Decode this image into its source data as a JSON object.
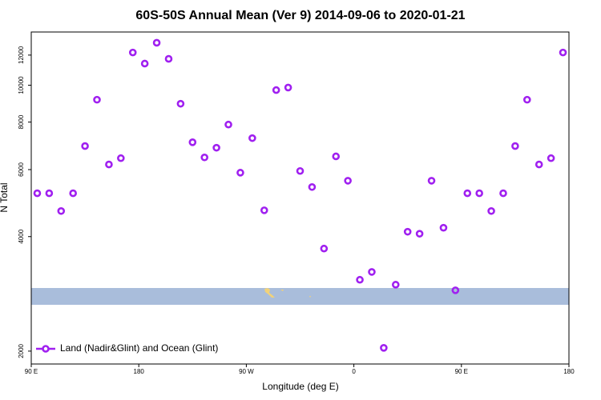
{
  "chart_data": {
    "type": "scatter",
    "title": "60S-50S Annual Mean (Ver 9)   2014-09-06 to 2020-01-21",
    "x_label": "Longitude (deg E)",
    "y_label": "N Total",
    "log_y": true,
    "xlim": [
      90,
      540
    ],
    "xticks": [
      {
        "value": 90,
        "label": "90 E"
      },
      {
        "value": 180,
        "label": "180"
      },
      {
        "value": 270,
        "label": "90 W"
      },
      {
        "value": 360,
        "label": "0"
      },
      {
        "value": 450,
        "label": "90 E"
      },
      {
        "value": 540,
        "label": "180"
      }
    ],
    "ylim": [
      1850,
      13800
    ],
    "yticks": [
      2000,
      4000,
      6000,
      8000,
      10000,
      12000
    ],
    "legend_position": "lower left",
    "series": [
      {
        "name": "Land (Nadir&Glint) and Ocean (Glint)",
        "color": "#a020f0",
        "x": [
          95,
          105,
          115,
          125,
          135,
          145,
          155,
          165,
          175,
          185,
          195,
          205,
          215,
          225,
          235,
          245,
          255,
          265,
          275,
          285,
          295,
          305,
          315,
          325,
          335,
          345,
          355,
          365,
          375,
          385,
          395,
          405,
          415,
          425,
          435,
          445,
          455,
          465,
          475,
          485,
          495,
          505,
          515,
          525,
          535
        ],
        "values": [
          5200,
          5200,
          4670,
          5200,
          6920,
          9160,
          6190,
          6430,
          12190,
          11400,
          12930,
          11730,
          8940,
          7080,
          6460,
          6850,
          7880,
          5890,
          7260,
          4690,
          9710,
          9860,
          5950,
          5400,
          3720,
          6500,
          5610,
          3080,
          3230,
          2040,
          2990,
          4120,
          4070,
          5610,
          4220,
          2890,
          5200,
          5200,
          4670,
          5200,
          6920,
          9160,
          6190,
          6430,
          12190
        ]
      }
    ]
  }
}
